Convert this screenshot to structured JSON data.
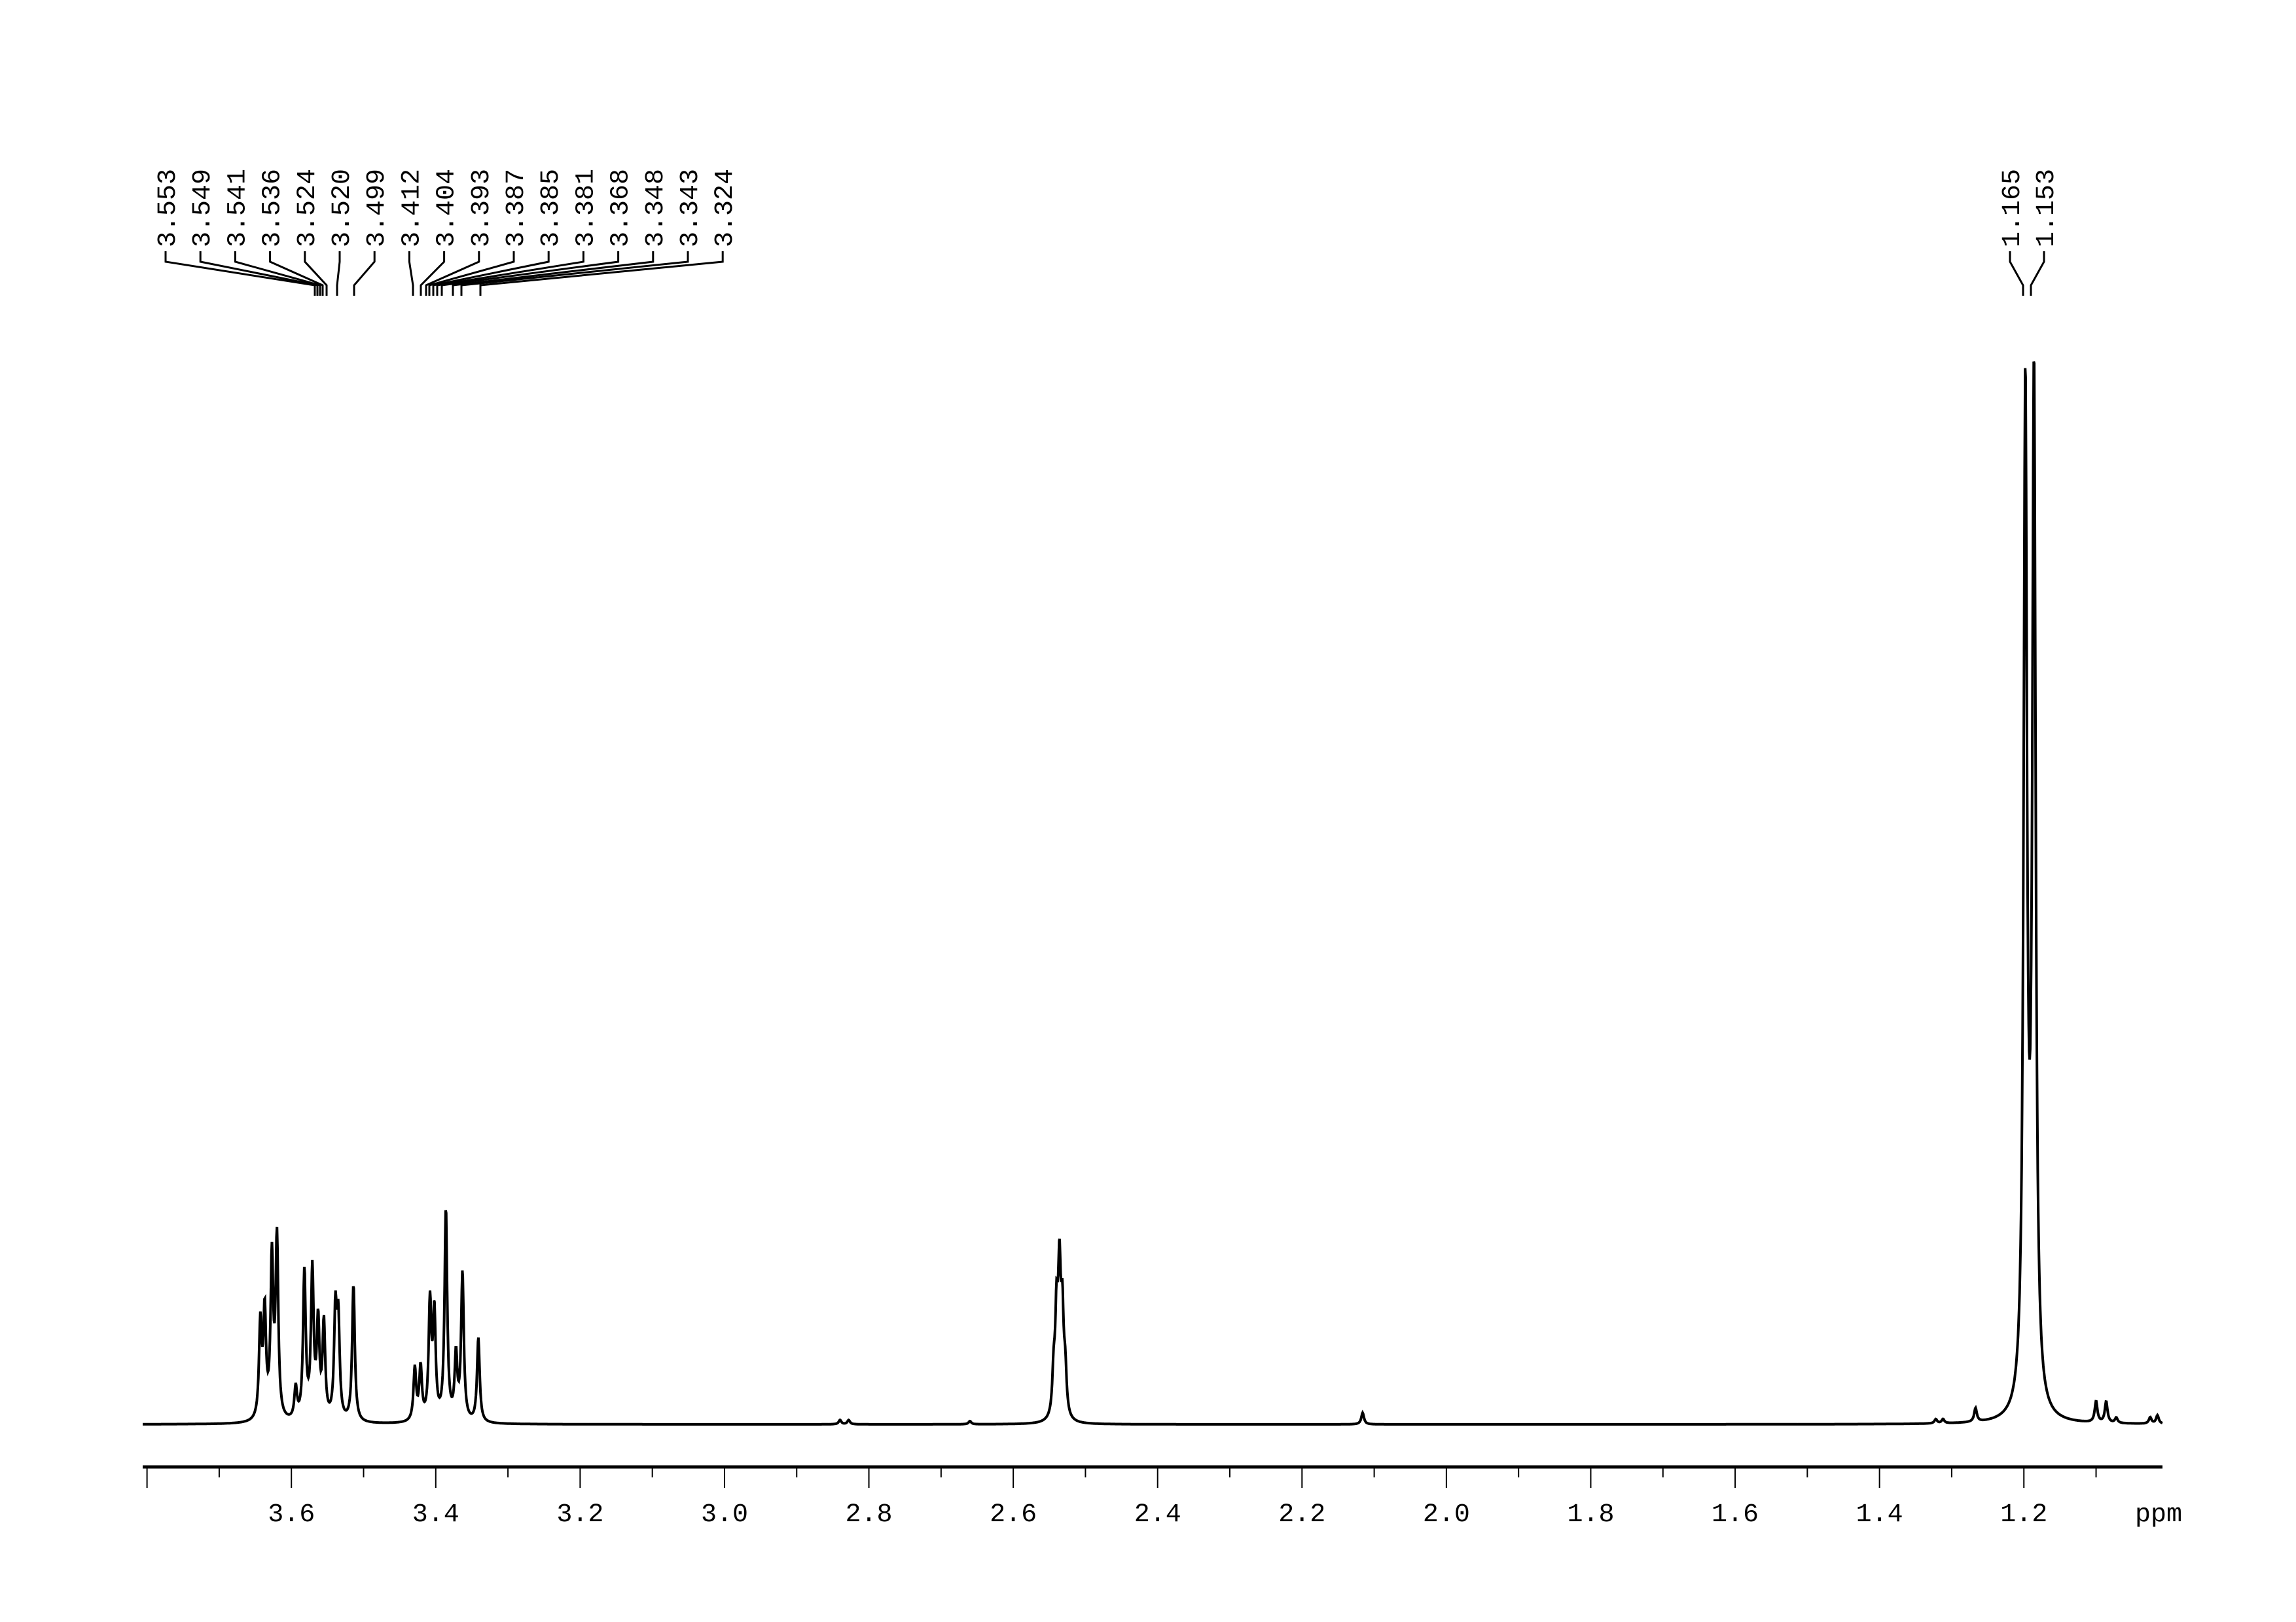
{
  "chart_data": {
    "type": "line",
    "title": "",
    "xlabel": "ppm",
    "ylabel": "",
    "x_reversed": true,
    "xlim": [
      3.806,
      1.008
    ],
    "x_ticks": [
      "3.6",
      "3.4",
      "3.2",
      "3.0",
      "2.8",
      "2.6",
      "2.4",
      "2.2",
      "2.0",
      "1.8",
      "1.6",
      "1.4",
      "1.2"
    ],
    "grid": false,
    "line_color": "#000000",
    "peak_labels_group1": [
      "3.553",
      "3.549",
      "3.541",
      "3.536",
      "3.524",
      "3.520",
      "3.499",
      "3.412",
      "3.404",
      "3.393",
      "3.387",
      "3.385",
      "3.381",
      "3.368",
      "3.348",
      "3.343",
      "3.324"
    ],
    "peak_labels_group2": [
      "1.165",
      "1.153"
    ],
    "peaks": [
      {
        "ppm": 3.643,
        "intensity": 9
      },
      {
        "ppm": 3.637,
        "intensity": 10
      },
      {
        "ppm": 3.627,
        "intensity": 15
      },
      {
        "ppm": 3.62,
        "intensity": 17
      },
      {
        "ppm": 3.594,
        "intensity": 3
      },
      {
        "ppm": 3.582,
        "intensity": 14
      },
      {
        "ppm": 3.571,
        "intensity": 14
      },
      {
        "ppm": 3.563,
        "intensity": 9
      },
      {
        "ppm": 3.555,
        "intensity": 9
      },
      {
        "ppm": 3.539,
        "intensity": 10
      },
      {
        "ppm": 3.535,
        "intensity": 9
      },
      {
        "ppm": 3.514,
        "intensity": 13
      },
      {
        "ppm": 3.429,
        "intensity": 5
      },
      {
        "ppm": 3.421,
        "intensity": 5
      },
      {
        "ppm": 3.408,
        "intensity": 11
      },
      {
        "ppm": 3.402,
        "intensity": 10
      },
      {
        "ppm": 3.386,
        "intensity": 20
      },
      {
        "ppm": 3.372,
        "intensity": 6
      },
      {
        "ppm": 3.363,
        "intensity": 14
      },
      {
        "ppm": 3.341,
        "intensity": 8
      },
      {
        "ppm": 2.84,
        "intensity": 0.4
      },
      {
        "ppm": 2.828,
        "intensity": 0.4
      },
      {
        "ppm": 2.66,
        "intensity": 0.3
      },
      {
        "ppm": 2.54,
        "intensity": 9
      },
      {
        "ppm": 2.536,
        "intensity": 13
      },
      {
        "ppm": 2.532,
        "intensity": 9
      },
      {
        "ppm": 2.544,
        "intensity": 4
      },
      {
        "ppm": 2.528,
        "intensity": 4
      },
      {
        "ppm": 2.116,
        "intensity": 1.1
      },
      {
        "ppm": 1.322,
        "intensity": 0.4
      },
      {
        "ppm": 1.312,
        "intensity": 0.4
      },
      {
        "ppm": 1.267,
        "intensity": 1.3
      },
      {
        "ppm": 1.198,
        "intensity": 96
      },
      {
        "ppm": 1.186,
        "intensity": 97
      },
      {
        "ppm": 1.1,
        "intensity": 2
      },
      {
        "ppm": 1.086,
        "intensity": 2
      },
      {
        "ppm": 1.072,
        "intensity": 0.5
      },
      {
        "ppm": 1.025,
        "intensity": 0.6
      },
      {
        "ppm": 1.015,
        "intensity": 0.8
      }
    ]
  }
}
